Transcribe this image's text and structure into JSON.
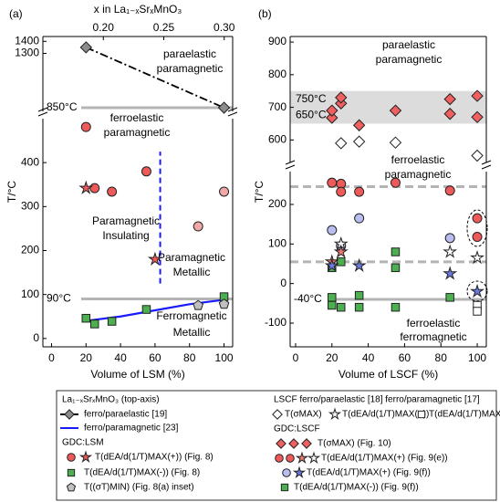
{
  "chart_data": [
    {
      "type": "scatter",
      "title": "(a)",
      "x2label": "x in La₁₋ₓSrₓMnO₃",
      "x2lim": [
        0.15,
        0.307
      ],
      "x2ticks": [
        {
          "value": 0.2,
          "label": "0.20"
        },
        {
          "value": 0.25,
          "label": "0.25"
        },
        {
          "value": 0.3,
          "label": "0.30"
        }
      ],
      "x2color": "#1a1aff",
      "xlim": [
        -5,
        105
      ],
      "ylim": [
        820,
        1440
      ],
      "yticks": [
        1300,
        1400
      ],
      "hlines": [
        {
          "value": 850,
          "label": "850°C",
          "dash": false
        }
      ],
      "annotations": [
        "paraelastic",
        "paramagnetic",
        "ferroelastic",
        "paramagnetic"
      ],
      "annotation_color": "#000000",
      "series": [
        {
          "marker": "diamond",
          "line": "dashdot",
          "color": "#8c8c8c",
          "x": [
            20,
            100
          ],
          "values": [
            1350,
            850
          ]
        }
      ]
    },
    {
      "type": "scatter",
      "xlabel": "Volume of LSM (%)",
      "ylabel": "T/°C",
      "xlim": [
        -5,
        105
      ],
      "xticks": [
        0,
        20,
        40,
        60,
        80,
        100
      ],
      "ylim": [
        -19,
        500
      ],
      "yticks": [
        0,
        100,
        200,
        300,
        400
      ],
      "hlines": [
        {
          "value": 90,
          "label": "90°C",
          "dash": false
        }
      ],
      "vline": {
        "x": 63,
        "y": [
          125,
          425
        ],
        "color": "#1a1aff"
      },
      "annotations": [
        "Paramagnetic",
        "Insulating",
        "Paramagnetic",
        "Metallic",
        "Ferromagnetic",
        "Metallic"
      ],
      "annotation_color": "#1a1aff",
      "series": [
        {
          "marker": "none",
          "line": "solid",
          "color": "#1a1aff",
          "x": [
            20,
            40,
            60,
            80,
            100
          ],
          "values": [
            40,
            50,
            64,
            78,
            88
          ]
        },
        {
          "marker": "circle",
          "line": "none",
          "color": "#f0a8a8",
          "x": [
            85,
            100
          ],
          "values": [
            255,
            334
          ]
        },
        {
          "marker": "circle",
          "line": "none",
          "color": "#ee5a5a",
          "x": [
            20,
            25,
            35,
            55
          ],
          "values": [
            481,
            342,
            334,
            380
          ]
        },
        {
          "marker": "star",
          "line": "none",
          "color": "#ee5a5a",
          "x": [
            20,
            60
          ],
          "values": [
            342,
            180
          ]
        },
        {
          "marker": "square",
          "line": "none",
          "color": "#4caf50",
          "x": [
            20,
            25,
            35,
            55,
            100
          ],
          "values": [
            46,
            33,
            39,
            66,
            95
          ]
        },
        {
          "marker": "pentagon",
          "line": "none",
          "color": "#c0c0c0",
          "x": [
            85,
            100
          ],
          "values": [
            75,
            78
          ]
        }
      ]
    },
    {
      "type": "scatter",
      "title": "(b)",
      "xlim": [
        -3,
        105
      ],
      "ylim": [
        531,
        917
      ],
      "yticks": [
        600,
        700,
        800,
        900
      ],
      "hband": [
        {
          "value": 650,
          "label": "650°C"
        },
        {
          "value": 750,
          "label": "750°C"
        }
      ],
      "band_color": "#dcdcdc",
      "annotations": [
        "paraelastic",
        "paramagnetic",
        "ferroelastic",
        "paramagnetic"
      ],
      "annotation_color": "#000000",
      "series": [
        {
          "marker": "diamond",
          "line": "none",
          "color": "#f06060",
          "x": [
            20,
            20,
            25,
            25,
            35,
            55,
            85,
            85,
            100,
            100
          ],
          "values": [
            668,
            690,
            712,
            730,
            645,
            690,
            680,
            725,
            735,
            670
          ]
        },
        {
          "marker": "diamond",
          "line": "none",
          "color": "#ffffff",
          "x": [
            25,
            35,
            55,
            100
          ],
          "values": [
            590,
            595,
            592,
            552
          ]
        }
      ]
    },
    {
      "type": "scatter",
      "xlabel": "Volume of LSCF (%)",
      "ylabel": "T/°C",
      "xlim": [
        -3,
        105
      ],
      "xticks": [
        0,
        20,
        40,
        60,
        80,
        100
      ],
      "ylim": [
        -160,
        283
      ],
      "yticks": [
        -100,
        0,
        100,
        200
      ],
      "hlines": [
        {
          "value": 245,
          "dash": true
        },
        {
          "value": 55,
          "dash": true
        },
        {
          "value": -40,
          "label": "-40°C",
          "dash": false
        }
      ],
      "annotations": [
        "ferroelastic",
        "ferromagnetic"
      ],
      "annotation_color": "#000000",
      "series": [
        {
          "marker": "circle",
          "line": "none",
          "color": "#ee5a5a",
          "x": [
            20,
            25,
            25,
            35,
            55,
            85,
            100,
            100
          ],
          "values": [
            255,
            252,
            232,
            232,
            255,
            235,
            165,
            118
          ]
        },
        {
          "marker": "circle",
          "line": "none",
          "color": "#b8bef0",
          "x": [
            20,
            25,
            35,
            85
          ],
          "values": [
            135,
            95,
            165,
            115
          ]
        },
        {
          "marker": "square",
          "line": "none",
          "color": "#4caf50",
          "x": [
            20,
            20,
            25,
            35,
            35,
            55,
            85,
            20,
            25,
            55,
            55
          ],
          "values": [
            -35,
            -55,
            -60,
            -30,
            -60,
            -60,
            -35,
            40,
            55,
            80,
            40
          ]
        },
        {
          "marker": "square",
          "line": "none",
          "color": "#ffffff",
          "x": [
            100,
            100
          ],
          "values": [
            -55,
            -70
          ]
        },
        {
          "marker": "star",
          "line": "none",
          "color": "#ffffff",
          "x": [
            25,
            85,
            100
          ],
          "values": [
            100,
            80,
            65
          ]
        },
        {
          "marker": "star",
          "line": "none",
          "color": "#ee7a70",
          "x": [
            20,
            25
          ],
          "values": [
            55,
            80
          ]
        },
        {
          "marker": "star",
          "line": "none",
          "color": "#6b7be0",
          "x": [
            20,
            35,
            85,
            100
          ],
          "values": [
            45,
            45,
            25,
            -20
          ]
        }
      ]
    }
  ],
  "legend": {
    "left": [
      "La₁₋ₓSrₓMnO₃ (top-axis)",
      "ferro/paraelastic [19]",
      "ferro/paramagnetic [23]",
      "GDC:LSM",
      "T(dEA/d(1/T)MAX(+)) (Fig. 8)",
      "T(dEA/d(1/T)MAX(-)) (Fig. 8)",
      "T((σT)MIN) (Fig. 8(a) inset)"
    ],
    "right": [
      "LSCF  ferro/paraelastic [18] ferro/paramagnetic [17]",
      "T(σMAX)",
      "T(dEA/d(1/T)MAX(+))",
      "T(dEA/d(1/T)MAX(-)[17]",
      "GDC:LSCF",
      "T(σMAX) (Fig. 10)",
      "T(dEA/d(1/T)MAX(+) (Fig. 9(e))",
      "T(dEA/d(1/T)MAX(+) (Fig. 9(f))",
      "T(dEA/d(1/T)MAX(-)) (Fig. 9(f))"
    ]
  }
}
